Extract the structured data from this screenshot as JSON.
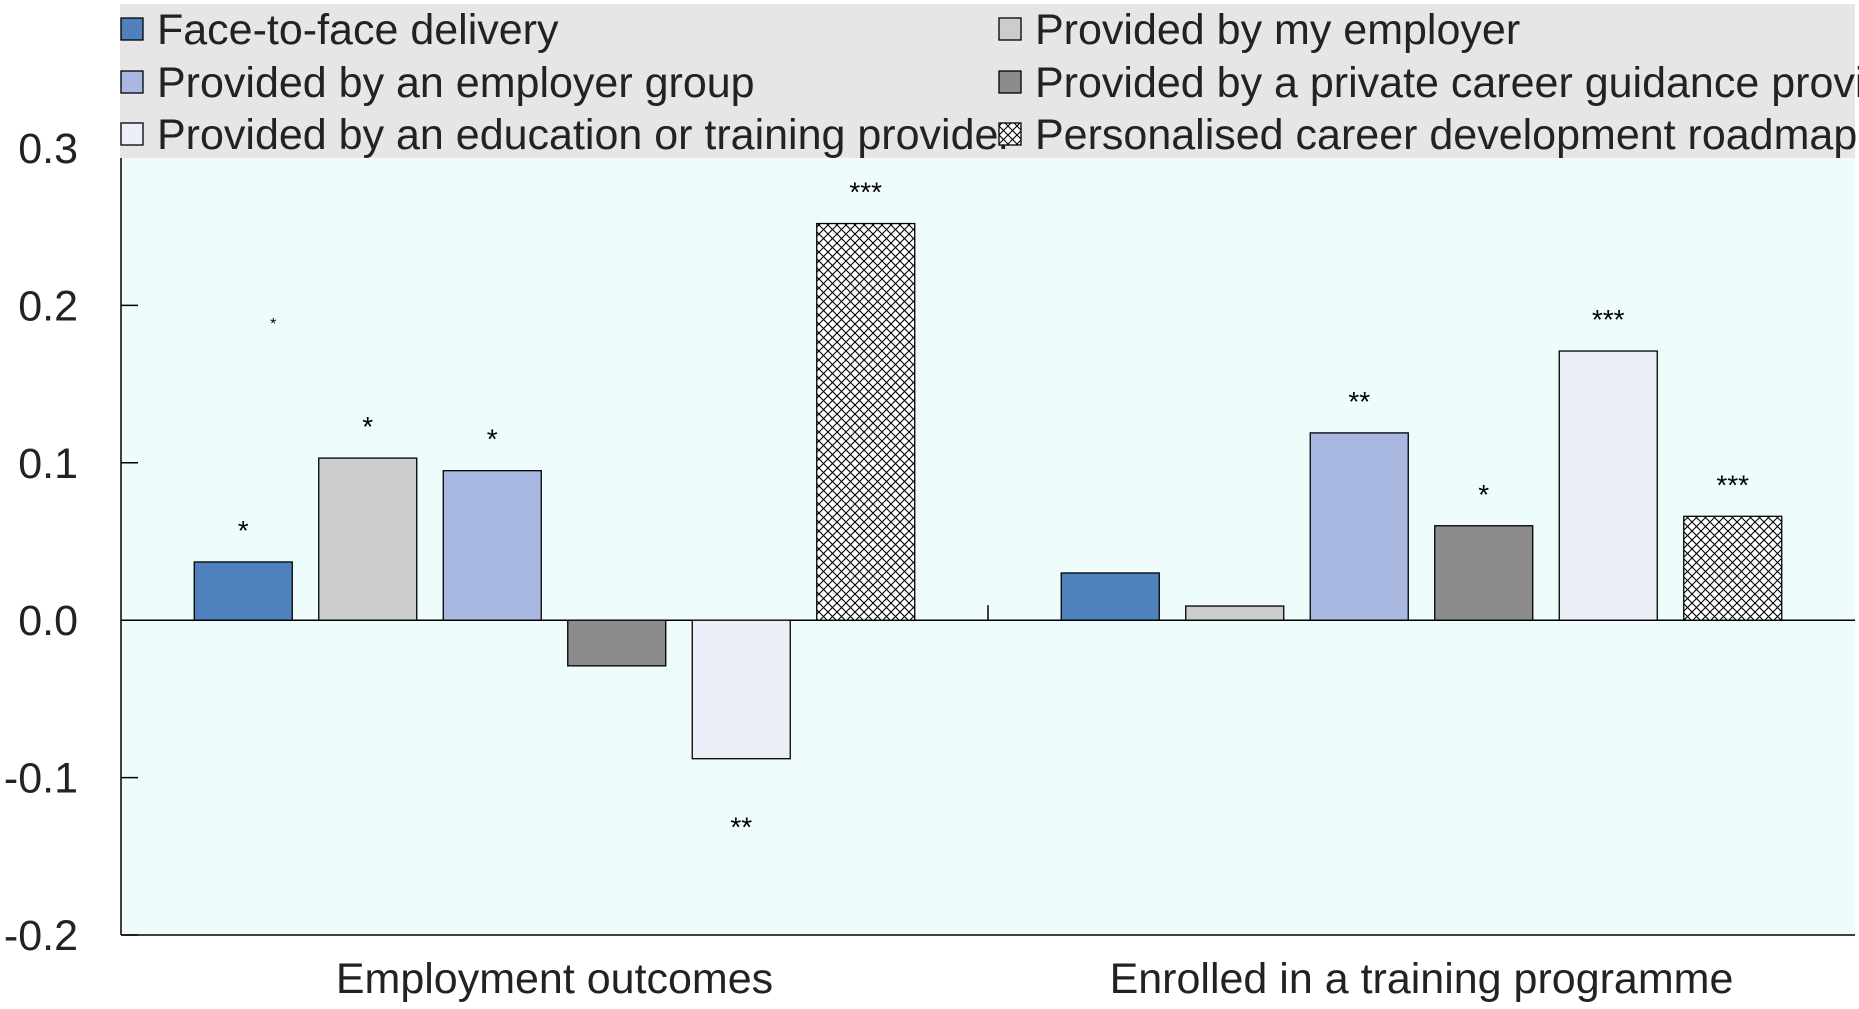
{
  "chart_data": {
    "type": "bar",
    "title": "",
    "xlabel": "",
    "ylabel": "",
    "ylim": [
      -0.2,
      0.3
    ],
    "yticks": [
      "0.3",
      "0.2",
      "0.1",
      "0.0",
      "-0.1",
      "-0.2"
    ],
    "categories": [
      "Employment outcomes",
      "Enrolled in a training programme"
    ],
    "legend_placement": "top",
    "series": [
      {
        "name": "Face-to-face delivery",
        "color": "#4f81bd",
        "pattern": "solid",
        "values": [
          0.037,
          0.03
        ],
        "significance": [
          "*",
          ""
        ]
      },
      {
        "name": "Provided by my employer",
        "color": "#cccccc",
        "pattern": "solid",
        "values": [
          0.103,
          0.009
        ],
        "significance": [
          "*",
          ""
        ]
      },
      {
        "name": "Provided by an employer group",
        "color": "#a8b8e0",
        "pattern": "solid",
        "values": [
          0.095,
          0.119
        ],
        "significance": [
          "*",
          "**"
        ]
      },
      {
        "name": "Provided by a private career guidance provider",
        "color": "#8c8c8c",
        "pattern": "solid",
        "values": [
          -0.029,
          0.06
        ],
        "significance": [
          "",
          "*"
        ]
      },
      {
        "name": "Provided by an education or training provider",
        "color": "#eceef8",
        "pattern": "solid",
        "values": [
          -0.088,
          0.171
        ],
        "significance": [
          "**",
          "***"
        ]
      },
      {
        "name": "Personalised career development roadmap",
        "color": "#ffffff",
        "pattern": "crosshatch",
        "values": [
          0.252,
          0.066
        ],
        "significance": [
          "***",
          "***"
        ]
      }
    ],
    "extra_annotations": [
      {
        "text": "*",
        "category": "Employment outcomes",
        "value": 0.19
      }
    ],
    "plot_background": "#effcfc",
    "legend_background": "#e6e6e6"
  }
}
